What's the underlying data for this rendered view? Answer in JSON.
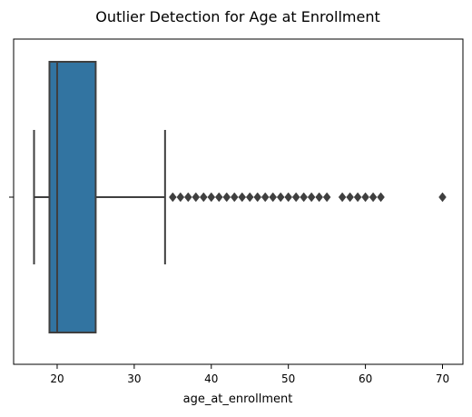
{
  "chart_data": {
    "type": "boxplot",
    "title": "Outlier Detection for Age at Enrollment",
    "xlabel": "age_at_enrollment",
    "ylabel": "",
    "xlim": [
      14.35,
      72.65
    ],
    "x_ticks": [
      20,
      30,
      40,
      50,
      60,
      70
    ],
    "orientation": "horizontal",
    "grid": false,
    "legend": "none",
    "box": {
      "min_whisker": 17,
      "q1": 19,
      "median": 20,
      "q3": 25,
      "max_whisker": 34,
      "fill_color": "#3274a1",
      "line_color": "#3f3f3f"
    },
    "outliers": [
      35,
      36,
      37,
      38,
      39,
      40,
      41,
      42,
      43,
      44,
      45,
      46,
      47,
      48,
      49,
      50,
      51,
      52,
      53,
      54,
      55,
      57,
      58,
      59,
      60,
      61,
      62,
      70
    ]
  }
}
